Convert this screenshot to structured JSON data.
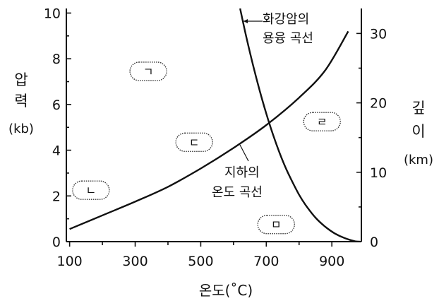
{
  "chart_data": {
    "type": "line",
    "xlabel": "온도(˚C)",
    "ylabel_left": [
      "압",
      "력",
      "(kb)"
    ],
    "ylabel_right": [
      "깊",
      "이",
      "(km)"
    ],
    "xlim": [
      90,
      990
    ],
    "ylim_left": [
      0,
      10.2
    ],
    "ylim_right": [
      0,
      33.6
    ],
    "x_ticks": [
      "100",
      "300",
      "500",
      "700",
      "900"
    ],
    "x_tick_values": [
      100,
      300,
      500,
      700,
      900
    ],
    "x_minor_ticks": [
      200,
      400,
      600,
      800
    ],
    "y_left_ticks": [
      "0",
      "2",
      "4",
      "6",
      "8",
      "10"
    ],
    "y_left_tick_values": [
      0,
      2,
      4,
      6,
      8,
      10
    ],
    "y_right_ticks": [
      "0",
      "10",
      "20",
      "30"
    ],
    "y_right_tick_values": [
      0,
      10,
      20,
      30
    ],
    "series": [
      {
        "name": "화강암의 용융 곡선",
        "label_lines": [
          "화강암의",
          "용융 곡선"
        ],
        "points": [
          [
            620,
            10.2
          ],
          [
            640,
            8.9
          ],
          [
            660,
            7.7
          ],
          [
            680,
            6.6
          ],
          [
            700,
            5.6
          ],
          [
            720,
            4.7
          ],
          [
            740,
            3.9
          ],
          [
            760,
            3.2
          ],
          [
            780,
            2.6
          ],
          [
            800,
            2.05
          ],
          [
            820,
            1.6
          ],
          [
            850,
            1.05
          ],
          [
            880,
            0.65
          ],
          [
            910,
            0.35
          ],
          [
            940,
            0.15
          ],
          [
            970,
            0.02
          ],
          [
            985,
            0
          ]
        ]
      },
      {
        "name": "지하의 온도 곡선",
        "label_lines": [
          "지하의",
          "온도 곡선"
        ],
        "points": [
          [
            100,
            0.55
          ],
          [
            200,
            1.15
          ],
          [
            300,
            1.75
          ],
          [
            400,
            2.4
          ],
          [
            500,
            3.2
          ],
          [
            600,
            4.1
          ],
          [
            700,
            5.1
          ],
          [
            800,
            6.3
          ],
          [
            880,
            7.5
          ],
          [
            950,
            9.2
          ]
        ]
      }
    ],
    "regions": [
      {
        "label": "ㄱ",
        "x": 340,
        "y": 7.45
      },
      {
        "label": "ㄴ",
        "x": 165,
        "y": 2.25
      },
      {
        "label": "ㄷ",
        "x": 480,
        "y": 4.35
      },
      {
        "label": "ㄹ",
        "x": 870,
        "y": 5.25
      },
      {
        "label": "ㅁ",
        "x": 730,
        "y": 0.75
      }
    ]
  }
}
